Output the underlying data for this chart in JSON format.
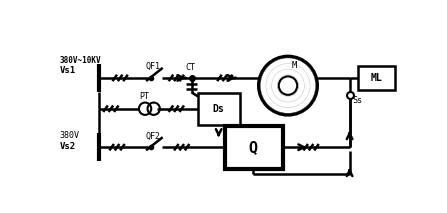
{
  "bg_color": "#ffffff",
  "line_color": "#000000",
  "fig_width": 4.47,
  "fig_height": 2.13,
  "dpi": 100,
  "labels": {
    "vs1_voltage": "380V~10KV",
    "vs1": "Vs1",
    "vs2_voltage": "380V",
    "vs2": "Vs2",
    "qf1": "QF1",
    "qf2": "QF2",
    "ct": "CT",
    "pt": "PT",
    "ds": "Ds",
    "q": "Q",
    "m": "M",
    "ml": "ML",
    "ss": "Ss"
  }
}
